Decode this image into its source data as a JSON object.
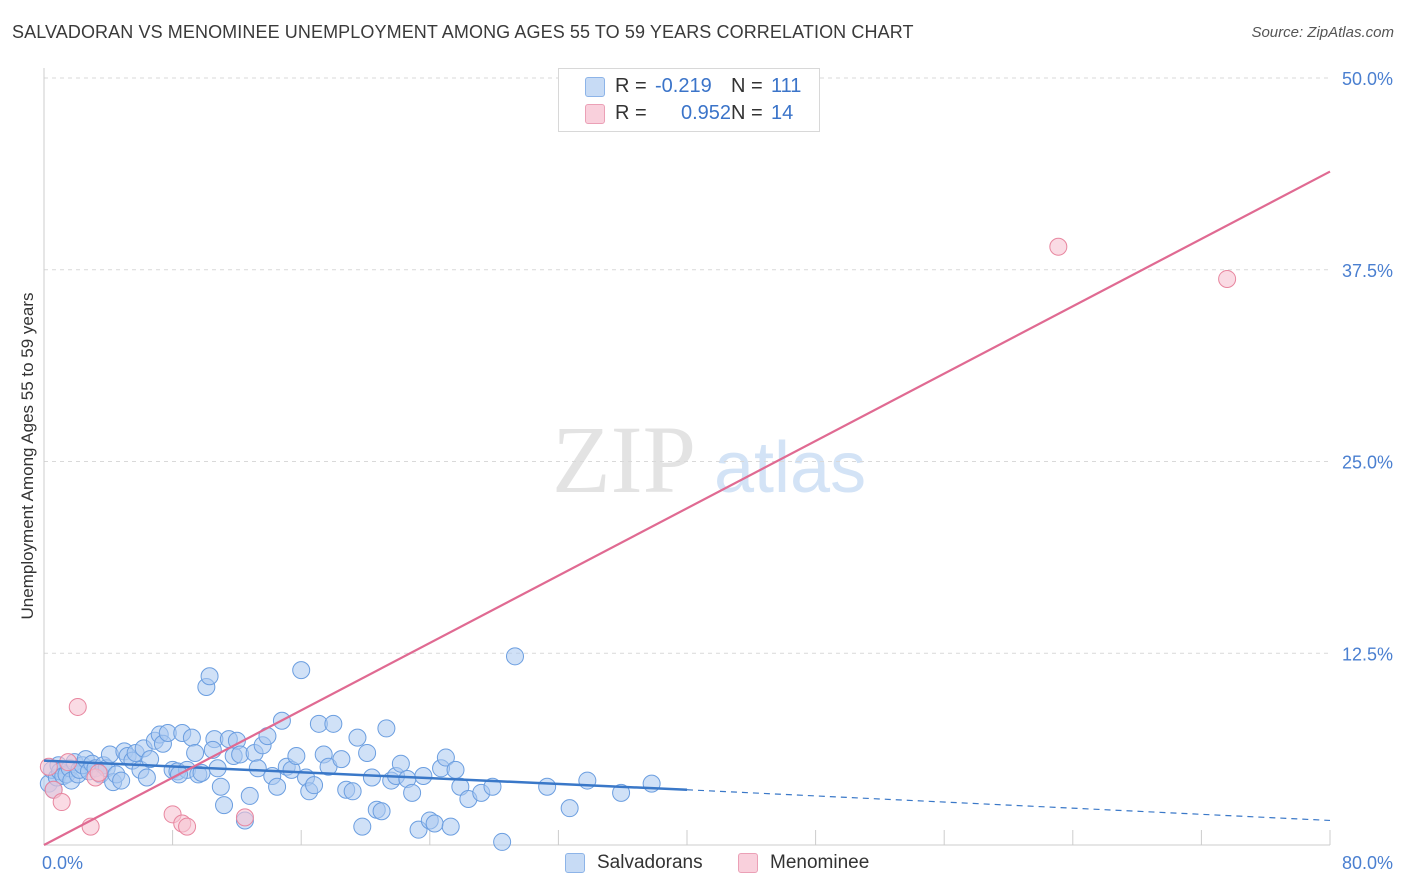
{
  "title": "SALVADORAN VS MENOMINEE UNEMPLOYMENT AMONG AGES 55 TO 59 YEARS CORRELATION CHART",
  "source": "Source: ZipAtlas.com",
  "watermark": {
    "zip": "ZIP",
    "atlas": "atlas"
  },
  "legend": {
    "salvadorans": {
      "r_label": "R =",
      "r_value": "-0.219",
      "n_label": "N =",
      "n_value": "111",
      "color": "#a9c8f0"
    },
    "menominee": {
      "r_label": "R =",
      "r_value": "0.952",
      "n_label": "N =",
      "n_value": "14",
      "color": "#f5b8cb"
    }
  },
  "bottom_legend": {
    "salvadorans": "Salvadorans",
    "menominee": "Menominee"
  },
  "colors": {
    "blue_fill": "#a9c8f0",
    "blue_stroke": "#6b9ee0",
    "blue_line": "#3a78c8",
    "pink_fill": "#f7c3d2",
    "pink_stroke": "#e8869f",
    "pink_line": "#e06a92",
    "tick": "#4a7fd0"
  },
  "chart_data": {
    "type": "scatter",
    "title": "SALVADORAN VS MENOMINEE UNEMPLOYMENT AMONG AGES 55 TO 59 YEARS CORRELATION CHART",
    "xlabel": "",
    "ylabel": "Unemployment Among Ages 55 to 59 years",
    "xlim": [
      0,
      80
    ],
    "ylim": [
      0,
      50
    ],
    "x_tick_labels": [
      "0.0%",
      "80.0%"
    ],
    "y_ticks": [
      12.5,
      25,
      37.5,
      50
    ],
    "y_tick_labels": [
      "12.5%",
      "25.0%",
      "37.5%",
      "50.0%"
    ],
    "grid": "horizontal dashed",
    "series": [
      {
        "name": "Salvadorans",
        "points": [
          [
            0.3,
            4.0
          ],
          [
            0.5,
            4.9
          ],
          [
            0.6,
            3.6
          ],
          [
            0.8,
            4.4
          ],
          [
            0.9,
            5.2
          ],
          [
            1.0,
            4.8
          ],
          [
            1.2,
            4.5
          ],
          [
            1.4,
            4.6
          ],
          [
            1.6,
            5.0
          ],
          [
            1.7,
            4.2
          ],
          [
            1.9,
            5.4
          ],
          [
            2.1,
            4.6
          ],
          [
            2.2,
            4.9
          ],
          [
            2.4,
            5.2
          ],
          [
            2.6,
            5.6
          ],
          [
            2.8,
            4.8
          ],
          [
            3.0,
            5.3
          ],
          [
            3.2,
            5.0
          ],
          [
            3.5,
            4.6
          ],
          [
            3.7,
            5.2
          ],
          [
            3.9,
            5.0
          ],
          [
            4.1,
            5.9
          ],
          [
            4.3,
            4.1
          ],
          [
            4.5,
            4.6
          ],
          [
            4.8,
            4.2
          ],
          [
            5.0,
            6.1
          ],
          [
            5.2,
            5.8
          ],
          [
            5.5,
            5.5
          ],
          [
            5.7,
            6.0
          ],
          [
            6.0,
            4.9
          ],
          [
            6.2,
            6.3
          ],
          [
            6.4,
            4.4
          ],
          [
            6.6,
            5.6
          ],
          [
            6.9,
            6.8
          ],
          [
            7.2,
            7.2
          ],
          [
            7.4,
            6.6
          ],
          [
            7.7,
            7.3
          ],
          [
            8.0,
            4.9
          ],
          [
            8.3,
            4.8
          ],
          [
            8.6,
            7.3
          ],
          [
            8.9,
            4.9
          ],
          [
            9.2,
            7.0
          ],
          [
            9.4,
            6.0
          ],
          [
            9.6,
            4.6
          ],
          [
            9.8,
            4.7
          ],
          [
            10.1,
            10.3
          ],
          [
            10.3,
            11.0
          ],
          [
            10.6,
            6.9
          ],
          [
            10.8,
            5.0
          ],
          [
            11.0,
            3.8
          ],
          [
            11.2,
            2.6
          ],
          [
            11.5,
            6.9
          ],
          [
            11.8,
            5.8
          ],
          [
            12.0,
            6.8
          ],
          [
            12.2,
            5.9
          ],
          [
            12.5,
            1.6
          ],
          [
            12.8,
            3.2
          ],
          [
            13.1,
            6.0
          ],
          [
            13.3,
            5.0
          ],
          [
            13.6,
            6.5
          ],
          [
            13.9,
            7.1
          ],
          [
            14.2,
            4.5
          ],
          [
            14.5,
            3.8
          ],
          [
            14.8,
            8.1
          ],
          [
            15.1,
            5.1
          ],
          [
            15.4,
            4.9
          ],
          [
            15.7,
            5.8
          ],
          [
            16.0,
            11.4
          ],
          [
            16.3,
            4.4
          ],
          [
            16.5,
            3.5
          ],
          [
            16.8,
            3.9
          ],
          [
            17.1,
            7.9
          ],
          [
            17.4,
            5.9
          ],
          [
            17.7,
            5.1
          ],
          [
            18.0,
            7.9
          ],
          [
            18.5,
            5.6
          ],
          [
            18.8,
            3.6
          ],
          [
            19.2,
            3.5
          ],
          [
            19.5,
            7.0
          ],
          [
            19.8,
            1.2
          ],
          [
            20.1,
            6.0
          ],
          [
            20.4,
            4.4
          ],
          [
            20.7,
            2.3
          ],
          [
            21.0,
            2.2
          ],
          [
            21.3,
            7.6
          ],
          [
            21.6,
            4.2
          ],
          [
            21.9,
            4.5
          ],
          [
            22.2,
            5.3
          ],
          [
            22.6,
            4.3
          ],
          [
            22.9,
            3.4
          ],
          [
            23.3,
            1.0
          ],
          [
            23.6,
            4.5
          ],
          [
            24.0,
            1.6
          ],
          [
            24.3,
            1.4
          ],
          [
            24.7,
            5.0
          ],
          [
            25.0,
            5.7
          ],
          [
            25.3,
            1.2
          ],
          [
            25.6,
            4.9
          ],
          [
            25.9,
            3.8
          ],
          [
            26.4,
            3.0
          ],
          [
            27.2,
            3.4
          ],
          [
            27.9,
            3.8
          ],
          [
            28.5,
            0.2
          ],
          [
            29.3,
            12.3
          ],
          [
            31.3,
            3.8
          ],
          [
            32.7,
            2.4
          ],
          [
            33.8,
            4.2
          ],
          [
            35.9,
            3.4
          ],
          [
            37.8,
            4.0
          ],
          [
            10.5,
            6.2
          ],
          [
            8.4,
            4.6
          ]
        ],
        "trend_solid": [
          [
            0,
            5.5
          ],
          [
            40,
            3.6
          ]
        ],
        "trend_dashed": [
          [
            40,
            3.6
          ],
          [
            80,
            1.6
          ]
        ]
      },
      {
        "name": "Menominee",
        "points": [
          [
            0.3,
            5.1
          ],
          [
            0.6,
            3.6
          ],
          [
            1.1,
            2.8
          ],
          [
            1.5,
            5.4
          ],
          [
            2.1,
            9.0
          ],
          [
            2.9,
            1.2
          ],
          [
            3.2,
            4.4
          ],
          [
            3.4,
            4.7
          ],
          [
            8.0,
            2.0
          ],
          [
            8.6,
            1.4
          ],
          [
            8.9,
            1.2
          ],
          [
            12.5,
            1.8
          ],
          [
            63.1,
            39.0
          ],
          [
            73.6,
            36.9
          ]
        ],
        "trend_solid": [
          [
            0,
            0.0
          ],
          [
            80,
            43.9
          ]
        ]
      }
    ]
  }
}
